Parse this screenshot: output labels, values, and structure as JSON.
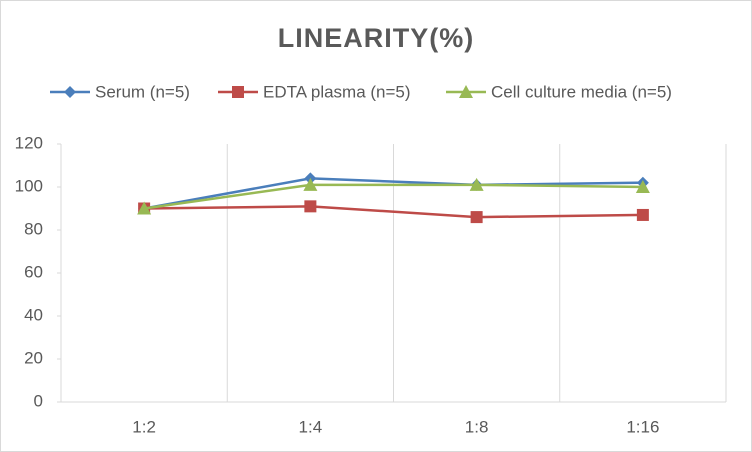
{
  "chart_data": {
    "type": "line",
    "title": "LINEARITY(%)",
    "categories": [
      "1:2",
      "1:4",
      "1:8",
      "1:16"
    ],
    "series": [
      {
        "name": "Serum (n=5)",
        "color": "#4a7ebb",
        "marker": "diamond",
        "values": [
          90,
          104,
          101,
          102
        ]
      },
      {
        "name": "EDTA plasma (n=5)",
        "color": "#be4b48",
        "marker": "square",
        "values": [
          90,
          91,
          86,
          87
        ]
      },
      {
        "name": "Cell culture media (n=5)",
        "color": "#98b954",
        "marker": "triangle",
        "values": [
          90,
          101,
          101,
          100
        ]
      }
    ],
    "ylim": [
      0,
      120
    ],
    "yticks": [
      0,
      20,
      40,
      60,
      80,
      100,
      120
    ],
    "legend": "top"
  }
}
